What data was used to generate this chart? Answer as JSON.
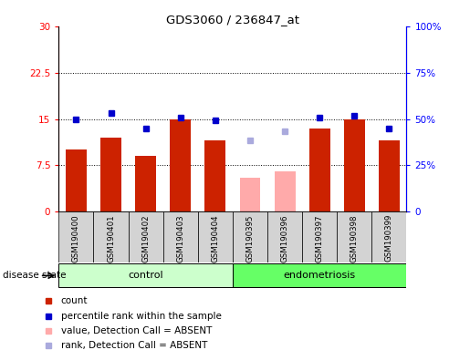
{
  "title": "GDS3060 / 236847_at",
  "samples": [
    "GSM190400",
    "GSM190401",
    "GSM190402",
    "GSM190403",
    "GSM190404",
    "GSM190395",
    "GSM190396",
    "GSM190397",
    "GSM190398",
    "GSM190399"
  ],
  "groups": [
    "control",
    "control",
    "control",
    "control",
    "control",
    "endometriosis",
    "endometriosis",
    "endometriosis",
    "endometriosis",
    "endometriosis"
  ],
  "count_values": [
    10.0,
    12.0,
    9.0,
    15.0,
    11.5,
    null,
    null,
    13.5,
    15.0,
    11.5
  ],
  "count_absent": [
    null,
    null,
    null,
    null,
    null,
    5.5,
    6.5,
    null,
    null,
    null
  ],
  "rank_values": [
    15.0,
    16.0,
    13.5,
    15.2,
    14.8,
    null,
    null,
    15.2,
    15.5,
    13.5
  ],
  "rank_absent": [
    null,
    null,
    null,
    null,
    null,
    11.5,
    13.0,
    null,
    null,
    null
  ],
  "bar_color": "#cc2200",
  "bar_absent_color": "#ffaaaa",
  "dot_color": "#0000cc",
  "dot_absent_color": "#aaaadd",
  "left_ylim": [
    0,
    30
  ],
  "right_ylim": [
    0,
    30
  ],
  "left_yticks": [
    0,
    7.5,
    15,
    22.5,
    30
  ],
  "left_yticklabels": [
    "0",
    "7.5",
    "15",
    "22.5",
    "30"
  ],
  "right_yticks": [
    0,
    7.5,
    15,
    22.5,
    30
  ],
  "right_yticklabels": [
    "0",
    "25%",
    "50%",
    "75%",
    "100%"
  ],
  "dotted_lines": [
    7.5,
    15,
    22.5
  ],
  "control_color": "#ccffcc",
  "endo_color": "#66ff66",
  "label_bg_color": "#d3d3d3",
  "group_label": "disease state",
  "legend": [
    {
      "label": "count",
      "color": "#cc2200"
    },
    {
      "label": "percentile rank within the sample",
      "color": "#0000cc"
    },
    {
      "label": "value, Detection Call = ABSENT",
      "color": "#ffaaaa"
    },
    {
      "label": "rank, Detection Call = ABSENT",
      "color": "#aaaadd"
    }
  ]
}
